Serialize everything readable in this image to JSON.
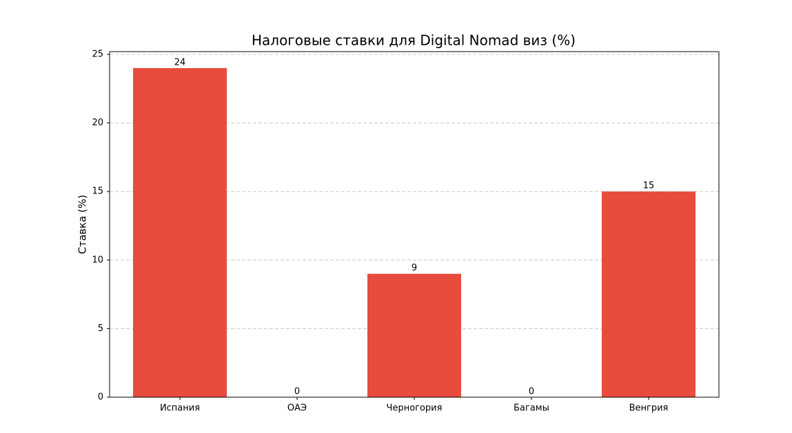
{
  "chart_data": {
    "type": "bar",
    "title": "Налоговые ставки для Digital Nomad виз (%)",
    "y_label": "Ставка (%)",
    "categories": [
      "Испания",
      "ОАЭ",
      "Черногория",
      "Багамы",
      "Венгрия"
    ],
    "values": [
      24,
      0,
      9,
      0,
      15
    ],
    "color": "#e74c3c",
    "ylim": [
      0,
      25.2
    ],
    "yticks": [
      0,
      5,
      10,
      15,
      20,
      25
    ],
    "grid": true
  }
}
